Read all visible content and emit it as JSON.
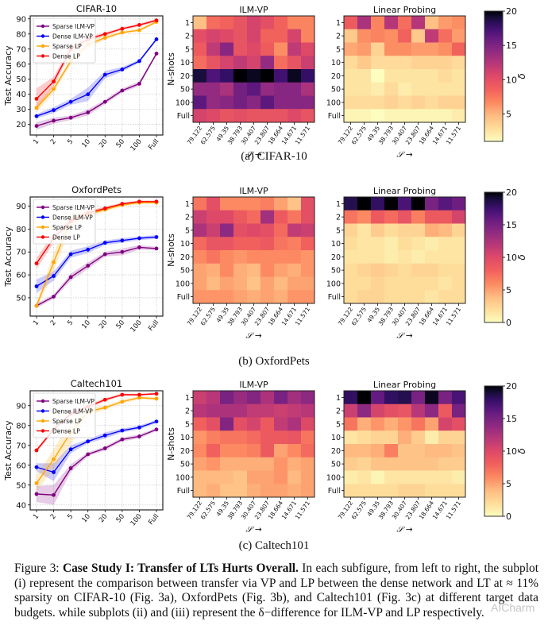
{
  "figure": {
    "subcaptions": [
      "(a) CIFAR-10",
      "(b) OxfordPets",
      "(c) Caltech101"
    ],
    "caption": {
      "prefix": "Figure 3: ",
      "bold": "Case Study I: Transfer of LTs Hurts Overall.",
      "text": " In each subfigure, from left to right, the subplot (i) represent the comparison between transfer via VP and LP between the dense network and LT at ≈ 11% sparsity on CIFAR-10 (Fig. 3a), OxfordPets (Fig. 3b), and Caltech101 (Fig. 3c) at different target data budgets. while subplots (ii) and (iii) represent the δ−difference for ILM-VP and LP respectively."
    },
    "watermark": "AICharm"
  },
  "chart_data": [
    {
      "type": "line",
      "title": "CIFAR-10",
      "xlabel": "N-shots",
      "ylabel": "Test Accuracy",
      "categories": [
        "1",
        "2",
        "5",
        "10",
        "20",
        "50",
        "100",
        "Full"
      ],
      "yticks": [
        20,
        30,
        40,
        50,
        60,
        70,
        80,
        90
      ],
      "ylim": [
        13,
        92
      ],
      "legend": "top-left",
      "grid": true,
      "series": [
        {
          "name": "Sparse ILM-VP",
          "color": "#800080",
          "values": [
            19,
            22.5,
            24.5,
            28,
            35,
            42.5,
            47,
            67
          ],
          "band": [
            2.5,
            2,
            1.5,
            2,
            1.5,
            1.5,
            1.5,
            1
          ]
        },
        {
          "name": "Dense ILM-VP",
          "color": "#0000ff",
          "values": [
            25.5,
            29.5,
            35,
            40,
            53,
            56.5,
            62,
            76.5
          ],
          "band": [
            1.5,
            2,
            2,
            4.5,
            2.5,
            1.5,
            1,
            1
          ]
        },
        {
          "name": "Sparse LP",
          "color": "#ffa500",
          "values": [
            31,
            43.5,
            62,
            73,
            77.5,
            81,
            82.5,
            88
          ],
          "band": [
            3,
            2.5,
            2,
            2,
            1.5,
            1,
            1,
            1
          ]
        },
        {
          "name": "Dense LP",
          "color": "#ff0000",
          "values": [
            37,
            48.5,
            70,
            76.5,
            80,
            83.5,
            86,
            89
          ],
          "band": [
            7,
            3,
            2,
            1.5,
            1,
            1,
            1,
            1
          ]
        }
      ]
    },
    {
      "type": "heatmap",
      "title": "ILM-VP",
      "xlabel": "𝒮 →",
      "ylabel": "N-shots",
      "x": [
        "79.122",
        "62.575",
        "49.35",
        "38.793",
        "30.407",
        "23.807",
        "18.664",
        "14.671",
        "11.571"
      ],
      "y": [
        "1",
        "2",
        "5",
        "10",
        "20",
        "50",
        "100",
        "Full"
      ],
      "zlim": [
        1,
        20
      ],
      "values": [
        [
          4.5,
          8,
          8.5,
          9.5,
          11,
          10,
          8.5,
          7,
          7
        ],
        [
          10,
          11,
          10.5,
          9.5,
          11,
          8.5,
          8.5,
          11,
          7
        ],
        [
          9,
          12,
          14.5,
          9.5,
          10.5,
          9,
          6.5,
          12,
          10.5
        ],
        [
          8,
          9.5,
          11,
          12,
          11,
          14,
          8,
          9.5,
          11.5
        ],
        [
          19,
          17,
          18,
          20,
          19.5,
          20.5,
          17.5,
          19.5,
          18
        ],
        [
          14,
          14,
          13,
          15.5,
          16.5,
          14,
          14.5,
          14.5,
          13
        ],
        [
          16.5,
          14,
          14.5,
          15.5,
          14.5,
          16.5,
          14.5,
          14.5,
          14.5
        ],
        [
          11,
          10.5,
          9.5,
          10,
          9.5,
          9.5,
          9.5,
          10.5,
          9.5
        ]
      ]
    },
    {
      "type": "heatmap",
      "title": "Linear Probing",
      "xlabel": "𝒮 →",
      "ylabel": "",
      "x": [
        "79.122",
        "62.575",
        "49.35",
        "38.793",
        "30.407",
        "23.807",
        "18.664",
        "14.671",
        "11.571"
      ],
      "y": [
        "1",
        "2",
        "5",
        "10",
        "20",
        "50",
        "100",
        "Full"
      ],
      "zlim": [
        1,
        20
      ],
      "values": [
        [
          9,
          13,
          7,
          12.5,
          8,
          12.5,
          4.5,
          6,
          6.5
        ],
        [
          4,
          6.5,
          7,
          6.5,
          8.5,
          4,
          12,
          8,
          6
        ],
        [
          5.5,
          6,
          3.5,
          6.5,
          6.5,
          6,
          6,
          6.5,
          8.5
        ],
        [
          3,
          4,
          3,
          3,
          3,
          3.5,
          3.5,
          3.5,
          3
        ],
        [
          2.5,
          2.5,
          1,
          2.5,
          2.5,
          2.5,
          2.5,
          3,
          2.5
        ],
        [
          2.5,
          2.5,
          2,
          3,
          2,
          2.5,
          2.5,
          2.5,
          2.5
        ],
        [
          3,
          3,
          3,
          3.5,
          3,
          3.5,
          3,
          3.5,
          3.5
        ],
        [
          1.5,
          1.5,
          1,
          1.5,
          1.5,
          1.5,
          1.5,
          1.5,
          2
        ]
      ]
    },
    {
      "type": "colorbar",
      "label": "δ",
      "ticks": [
        5,
        10,
        15,
        20
      ],
      "zlim": [
        1,
        20
      ]
    },
    {
      "type": "line",
      "title": "OxfordPets",
      "xlabel": "N-shots",
      "ylabel": "Test Accuracy",
      "categories": [
        "1",
        "2",
        "5",
        "10",
        "20",
        "50",
        "100",
        "Full"
      ],
      "yticks": [
        50,
        60,
        70,
        80,
        90
      ],
      "ylim": [
        42,
        94
      ],
      "legend": "top-left",
      "grid": true,
      "series": [
        {
          "name": "Sparse ILM-VP",
          "color": "#800080",
          "values": [
            46.5,
            50.5,
            59,
            64,
            69,
            70,
            72,
            71.5
          ],
          "band": [
            1,
            1,
            1.5,
            1.5,
            1,
            1.5,
            1,
            0.8
          ]
        },
        {
          "name": "Dense ILM-VP",
          "color": "#0000ff",
          "values": [
            55,
            59.5,
            69,
            71,
            74,
            75,
            76,
            76.5
          ],
          "band": [
            3,
            2,
            1.5,
            1.5,
            1,
            1,
            0.8,
            0.8
          ]
        },
        {
          "name": "Sparse LP",
          "color": "#ffa500",
          "values": [
            46.5,
            65.5,
            84,
            86.5,
            88.5,
            90.5,
            91.5,
            91.5
          ],
          "band": [
            1.5,
            4,
            3,
            1.5,
            0.8,
            0.8,
            0.6,
            0.6
          ]
        },
        {
          "name": "Dense LP",
          "color": "#ff0000",
          "values": [
            65,
            76,
            83.5,
            87,
            89,
            91,
            92,
            92
          ],
          "band": [
            2.5,
            2,
            1.5,
            1,
            0.8,
            0.6,
            0.5,
            0.5
          ]
        }
      ]
    },
    {
      "type": "heatmap",
      "title": "ILM-VP",
      "xlabel": "𝒮 →",
      "ylabel": "N-shots",
      "x": [
        "79.122",
        "62.575",
        "49.35",
        "38.793",
        "30.407",
        "23.807",
        "18.664",
        "14.671",
        "11.571"
      ],
      "y": [
        "1",
        "2",
        "5",
        "10",
        "20",
        "50",
        "100",
        "Full"
      ],
      "zlim": [
        0,
        20
      ],
      "values": [
        [
          7,
          9.5,
          6,
          6,
          6,
          6.5,
          5,
          3.5,
          9.5
        ],
        [
          11,
          10,
          10,
          8.5,
          7.5,
          13,
          8.5,
          7,
          9.5
        ],
        [
          12.5,
          11,
          14,
          9.5,
          10,
          9.5,
          7.5,
          11.5,
          11
        ],
        [
          7.5,
          9,
          9,
          8,
          8,
          8.5,
          7,
          6.5,
          8
        ],
        [
          6,
          7,
          6,
          5.5,
          6,
          6,
          6,
          6,
          5.5
        ],
        [
          5,
          4.5,
          6,
          4.5,
          4,
          6,
          5,
          4.5,
          5.5
        ],
        [
          5,
          4,
          5,
          4.5,
          3.5,
          5,
          4,
          5,
          5
        ],
        [
          5.5,
          5.5,
          5.5,
          5,
          4.5,
          5,
          4.5,
          5.5,
          5.5
        ]
      ]
    },
    {
      "type": "heatmap",
      "title": "Linear Probing",
      "xlabel": "𝒮 →",
      "ylabel": "",
      "x": [
        "79.122",
        "62.575",
        "49.35",
        "38.793",
        "30.407",
        "23.807",
        "18.664",
        "14.671",
        "11.571"
      ],
      "y": [
        "1",
        "2",
        "5",
        "10",
        "20",
        "50",
        "100",
        "Full"
      ],
      "zlim": [
        0,
        20
      ],
      "values": [
        [
          18.5,
          20,
          18,
          20,
          17,
          20,
          15,
          16.5,
          15.5
        ],
        [
          7,
          6,
          8.5,
          7.5,
          9,
          6.5,
          8.5,
          8.5,
          10.5
        ],
        [
          2.5,
          1.5,
          3,
          2,
          2.5,
          2.5,
          4.5,
          4,
          2.5
        ],
        [
          2,
          1.5,
          1.5,
          1,
          2,
          1.5,
          1,
          1.5,
          1.5
        ],
        [
          1.5,
          1.5,
          1.5,
          1,
          1.5,
          1,
          1.5,
          1.5,
          1.5
        ],
        [
          2,
          2.5,
          3,
          2.5,
          2,
          2.5,
          2.5,
          2,
          2
        ],
        [
          2,
          2,
          2.5,
          2,
          2,
          2,
          2,
          1.5,
          2
        ],
        [
          2,
          2.5,
          2.5,
          2,
          2,
          2,
          1.5,
          2,
          2
        ]
      ]
    },
    {
      "type": "colorbar",
      "label": "δ",
      "ticks": [
        0,
        5,
        10,
        15,
        20
      ],
      "zlim": [
        0,
        20
      ]
    },
    {
      "type": "line",
      "title": "Caltech101",
      "xlabel": "N-shots",
      "ylabel": "Test Accuracy",
      "categories": [
        "1",
        "2",
        "5",
        "10",
        "20",
        "50",
        "100",
        "Full"
      ],
      "yticks": [
        40,
        50,
        60,
        70,
        80,
        90
      ],
      "ylim": [
        37.5,
        97.5
      ],
      "legend": "top-left",
      "grid": true,
      "series": [
        {
          "name": "Sparse ILM-VP",
          "color": "#800080",
          "values": [
            45.5,
            45,
            58.5,
            65.5,
            68.5,
            73,
            74.5,
            78
          ],
          "band": [
            4,
            5,
            2,
            1,
            1,
            1,
            1,
            0.8
          ]
        },
        {
          "name": "Dense ILM-VP",
          "color": "#0000ff",
          "values": [
            59,
            56.5,
            68,
            72,
            75,
            77.5,
            79,
            82
          ],
          "band": [
            2,
            4.5,
            2,
            1,
            1.5,
            1,
            1,
            0.8
          ]
        },
        {
          "name": "Sparse LP",
          "color": "#ffa500",
          "values": [
            51,
            63,
            76.5,
            87,
            89,
            92,
            94,
            93.5
          ],
          "band": [
            4,
            5,
            6,
            2,
            1,
            1,
            0.8,
            0.8
          ]
        },
        {
          "name": "Dense LP",
          "color": "#ff0000",
          "values": [
            67.5,
            78,
            86,
            89.5,
            93,
            95.5,
            95.5,
            96
          ],
          "band": [
            1,
            1,
            1,
            1,
            0.8,
            0.6,
            0.5,
            0.5
          ]
        }
      ]
    },
    {
      "type": "heatmap",
      "title": "ILM-VP",
      "xlabel": "𝒮 →",
      "ylabel": "N-shots",
      "x": [
        "79.122",
        "62.575",
        "49.35",
        "38.793",
        "30.407",
        "23.807",
        "18.664",
        "14.671",
        "11.571"
      ],
      "y": [
        "1",
        "2",
        "5",
        "10",
        "20",
        "50",
        "100",
        "Full"
      ],
      "zlim": [
        0,
        20
      ],
      "values": [
        [
          11,
          12,
          15,
          13.5,
          14.5,
          12.5,
          15,
          13,
          14
        ],
        [
          12,
          12.5,
          12.5,
          12.5,
          11.5,
          11.5,
          11,
          11.5,
          12
        ],
        [
          8,
          9.5,
          14.5,
          9.5,
          10.5,
          8.5,
          11.5,
          12.5,
          10
        ],
        [
          5.5,
          6.5,
          7,
          7,
          7.5,
          8.5,
          8.5,
          9,
          7
        ],
        [
          6,
          8,
          6,
          6,
          6.5,
          8.5,
          5,
          6,
          7.5
        ],
        [
          5,
          5.5,
          4.5,
          4.5,
          4.5,
          4.5,
          5.5,
          4.5,
          5
        ],
        [
          4,
          4,
          4,
          3.5,
          5,
          5,
          5.5,
          4,
          5
        ],
        [
          4,
          4.5,
          3.5,
          3.5,
          4.5,
          5,
          5,
          4.5,
          5
        ]
      ]
    },
    {
      "type": "heatmap",
      "title": "Linear Probing",
      "xlabel": "𝒮 →",
      "ylabel": "",
      "x": [
        "79.122",
        "62.575",
        "49.35",
        "38.793",
        "30.407",
        "23.807",
        "18.664",
        "14.671",
        "11.571"
      ],
      "y": [
        "1",
        "2",
        "5",
        "10",
        "20",
        "50",
        "100",
        "Full"
      ],
      "zlim": [
        0,
        20
      ],
      "values": [
        [
          18,
          20,
          16,
          18,
          18.5,
          15,
          19.5,
          15,
          17
        ],
        [
          11,
          14,
          10.5,
          9.5,
          9,
          12,
          14,
          8.5,
          15
        ],
        [
          7,
          4.5,
          5.5,
          4.5,
          5.5,
          7,
          5,
          10.5,
          9.5
        ],
        [
          1.5,
          2,
          2.5,
          2.5,
          4.5,
          3,
          1,
          2.5,
          2.5
        ],
        [
          4,
          4,
          4.5,
          6.5,
          3.5,
          3.5,
          4,
          4,
          3.5
        ],
        [
          3,
          2.5,
          3.5,
          3.5,
          3.5,
          3.5,
          3.5,
          3,
          3
        ],
        [
          1,
          1.5,
          0.5,
          1.5,
          1.5,
          1.5,
          1.5,
          1.5,
          1
        ],
        [
          2,
          2,
          2,
          2,
          2.5,
          2.5,
          2,
          2,
          2
        ]
      ]
    },
    {
      "type": "colorbar",
      "label": "δ",
      "ticks": [
        0,
        5,
        10,
        15,
        20
      ],
      "zlim": [
        0,
        20
      ]
    }
  ]
}
